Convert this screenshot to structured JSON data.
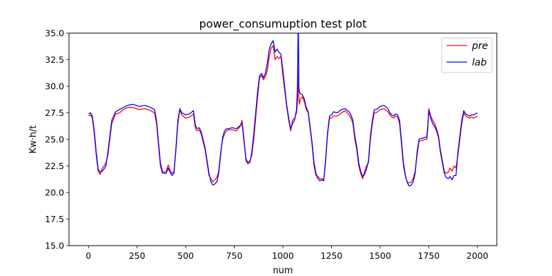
{
  "chart_data": {
    "type": "line",
    "title": "power_consumuption test plot",
    "xlabel": "num",
    "ylabel": "Kw·h/t",
    "xlim": [
      -100,
      2100
    ],
    "ylim": [
      15.0,
      35.0
    ],
    "x_ticks": [
      0,
      250,
      500,
      750,
      1000,
      1250,
      1500,
      1750,
      2000
    ],
    "x_tick_labels": [
      "0",
      "250",
      "500",
      "750",
      "1000",
      "1250",
      "1500",
      "1750",
      "2000"
    ],
    "y_ticks": [
      15.0,
      17.5,
      20.0,
      22.5,
      25.0,
      27.5,
      30.0,
      32.5,
      35.0
    ],
    "y_tick_labels": [
      "15.0",
      "17.5",
      "20.0",
      "22.5",
      "25.0",
      "27.5",
      "30.0",
      "32.5",
      "35.0"
    ],
    "grid": false,
    "legend_position": "top-right",
    "series": [
      {
        "name": "pre",
        "color": "#ff0000",
        "x": [
          0,
          10,
          20,
          30,
          40,
          50,
          60,
          70,
          80,
          90,
          100,
          120,
          140,
          160,
          180,
          200,
          230,
          260,
          290,
          320,
          340,
          350,
          360,
          370,
          380,
          390,
          400,
          410,
          420,
          430,
          440,
          450,
          460,
          470,
          480,
          500,
          520,
          540,
          550,
          560,
          570,
          580,
          600,
          620,
          630,
          640,
          650,
          660,
          670,
          680,
          690,
          700,
          710,
          720,
          740,
          760,
          780,
          790,
          800,
          810,
          820,
          830,
          840,
          850,
          860,
          870,
          880,
          890,
          900,
          910,
          920,
          930,
          940,
          950,
          960,
          970,
          980,
          990,
          1000,
          1010,
          1020,
          1030,
          1040,
          1050,
          1060,
          1070,
          1075,
          1078,
          1080,
          1082,
          1085,
          1090,
          1100,
          1110,
          1120,
          1130,
          1140,
          1150,
          1160,
          1170,
          1180,
          1190,
          1200,
          1210,
          1220,
          1230,
          1240,
          1250,
          1260,
          1280,
          1300,
          1320,
          1340,
          1350,
          1360,
          1370,
          1380,
          1390,
          1400,
          1410,
          1420,
          1430,
          1440,
          1450,
          1460,
          1470,
          1480,
          1500,
          1520,
          1540,
          1550,
          1560,
          1570,
          1580,
          1590,
          1600,
          1610,
          1620,
          1630,
          1640,
          1650,
          1660,
          1670,
          1680,
          1690,
          1700,
          1710,
          1720,
          1730,
          1740,
          1745,
          1750,
          1760,
          1770,
          1780,
          1790,
          1800,
          1810,
          1820,
          1830,
          1840,
          1850,
          1860,
          1870,
          1880,
          1890,
          1900,
          1910,
          1920,
          1930,
          1940,
          1950,
          1960,
          1970,
          1980,
          1990,
          2000
        ],
        "values": [
          27.2,
          27.3,
          27.0,
          25.5,
          23.5,
          22.0,
          21.7,
          22.2,
          22.5,
          22.8,
          23.5,
          26.5,
          27.4,
          27.5,
          27.8,
          28.0,
          28.0,
          27.8,
          27.9,
          27.7,
          27.5,
          26.5,
          24.5,
          22.5,
          21.8,
          21.9,
          22.0,
          22.6,
          22.1,
          21.8,
          22.0,
          24.0,
          26.5,
          27.8,
          27.3,
          27.0,
          27.1,
          27.4,
          26.0,
          25.8,
          25.9,
          25.5,
          24.0,
          21.6,
          21.3,
          21.0,
          21.2,
          21.4,
          22.0,
          23.8,
          25.0,
          25.5,
          25.8,
          25.9,
          25.9,
          25.8,
          26.2,
          26.8,
          25.0,
          23.0,
          22.7,
          23.0,
          23.5,
          25.0,
          27.0,
          29.0,
          30.8,
          31.0,
          30.6,
          30.9,
          31.5,
          32.8,
          33.6,
          33.8,
          32.5,
          32.8,
          32.6,
          32.8,
          31.0,
          29.5,
          28.0,
          26.8,
          25.8,
          26.8,
          27.0,
          27.5,
          28.5,
          30.5,
          31.5,
          29.0,
          28.3,
          28.8,
          29.0,
          28.6,
          27.8,
          27.5,
          26.0,
          24.5,
          22.5,
          21.6,
          21.5,
          21.3,
          21.3,
          21.2,
          23.0,
          25.5,
          27.0,
          27.0,
          27.2,
          27.2,
          27.5,
          27.7,
          27.3,
          27.0,
          26.5,
          25.0,
          24.0,
          22.5,
          21.8,
          21.3,
          22.0,
          22.5,
          22.8,
          25.0,
          26.5,
          27.5,
          27.5,
          27.8,
          27.9,
          27.6,
          27.3,
          27.1,
          27.0,
          27.2,
          27.1,
          26.5,
          24.5,
          22.5,
          21.5,
          21.0,
          20.9,
          21.0,
          21.3,
          22.0,
          23.5,
          24.8,
          24.9,
          24.9,
          25.0,
          25.0,
          26.0,
          27.9,
          27.2,
          26.8,
          26.5,
          26.0,
          25.4,
          24.0,
          23.0,
          22.0,
          21.8,
          21.9,
          22.3,
          22.0,
          22.5,
          22.3,
          23.5,
          25.0,
          26.5,
          27.5,
          27.2,
          27.1,
          27.0,
          27.1,
          27.0,
          27.1,
          27.2
        ]
      },
      {
        "name": "lab",
        "color": "#0000ff",
        "x": [
          0,
          10,
          20,
          30,
          40,
          50,
          60,
          70,
          80,
          90,
          100,
          120,
          140,
          160,
          180,
          200,
          230,
          260,
          290,
          320,
          340,
          350,
          360,
          370,
          380,
          390,
          400,
          410,
          420,
          430,
          440,
          450,
          460,
          470,
          480,
          500,
          520,
          540,
          550,
          560,
          570,
          580,
          600,
          620,
          630,
          640,
          650,
          660,
          670,
          680,
          690,
          700,
          710,
          720,
          740,
          760,
          780,
          790,
          800,
          810,
          820,
          830,
          840,
          850,
          860,
          870,
          880,
          890,
          900,
          910,
          920,
          930,
          940,
          950,
          960,
          970,
          980,
          990,
          1000,
          1010,
          1020,
          1030,
          1040,
          1050,
          1060,
          1070,
          1075,
          1078,
          1080,
          1082,
          1085,
          1090,
          1100,
          1110,
          1120,
          1130,
          1140,
          1150,
          1160,
          1170,
          1180,
          1190,
          1200,
          1210,
          1220,
          1230,
          1240,
          1250,
          1260,
          1280,
          1300,
          1320,
          1340,
          1350,
          1360,
          1370,
          1380,
          1390,
          1400,
          1410,
          1420,
          1430,
          1440,
          1450,
          1460,
          1470,
          1480,
          1500,
          1520,
          1540,
          1550,
          1560,
          1570,
          1580,
          1590,
          1600,
          1610,
          1620,
          1630,
          1640,
          1650,
          1660,
          1670,
          1680,
          1690,
          1700,
          1710,
          1720,
          1730,
          1740,
          1745,
          1750,
          1760,
          1770,
          1780,
          1790,
          1800,
          1810,
          1820,
          1830,
          1840,
          1850,
          1860,
          1870,
          1880,
          1890,
          1900,
          1910,
          1920,
          1930,
          1940,
          1950,
          1960,
          1970,
          1980,
          1990,
          2000
        ],
        "values": [
          27.4,
          27.5,
          27.2,
          25.8,
          23.8,
          22.2,
          21.9,
          22.0,
          22.2,
          22.5,
          23.8,
          26.8,
          27.6,
          27.8,
          28.0,
          28.2,
          28.3,
          28.1,
          28.2,
          28.0,
          27.8,
          26.8,
          24.8,
          22.8,
          22.0,
          21.8,
          21.8,
          22.3,
          21.9,
          21.6,
          21.8,
          24.2,
          26.8,
          27.9,
          27.5,
          27.3,
          27.4,
          27.7,
          26.3,
          26.0,
          26.1,
          25.7,
          24.2,
          21.8,
          21.0,
          20.7,
          20.8,
          21.0,
          21.8,
          23.6,
          25.2,
          25.8,
          26.0,
          26.0,
          26.1,
          26.0,
          26.3,
          26.5,
          24.8,
          23.2,
          22.8,
          22.8,
          23.8,
          25.5,
          27.5,
          29.5,
          31.0,
          31.2,
          30.8,
          31.2,
          32.2,
          33.5,
          34.0,
          34.3,
          33.2,
          33.5,
          33.2,
          33.0,
          31.5,
          29.8,
          28.2,
          27.0,
          26.0,
          26.5,
          26.8,
          27.8,
          30.0,
          35.0,
          35.0,
          30.0,
          29.5,
          29.3,
          29.2,
          28.8,
          28.0,
          27.6,
          26.2,
          24.7,
          22.8,
          21.8,
          21.3,
          21.1,
          21.2,
          21.1,
          23.2,
          25.7,
          27.2,
          27.3,
          27.6,
          27.5,
          27.8,
          27.9,
          27.6,
          27.3,
          26.8,
          25.3,
          24.3,
          22.8,
          22.0,
          21.5,
          21.7,
          22.2,
          23.0,
          25.3,
          26.8,
          27.8,
          27.8,
          28.1,
          28.2,
          27.9,
          27.5,
          27.3,
          27.2,
          27.4,
          27.3,
          26.8,
          24.8,
          22.8,
          21.6,
          20.9,
          20.6,
          20.7,
          21.0,
          21.8,
          23.8,
          25.0,
          25.1,
          25.1,
          25.2,
          25.2,
          26.3,
          27.7,
          27.0,
          26.5,
          26.2,
          25.8,
          25.2,
          23.8,
          22.8,
          21.8,
          21.4,
          21.3,
          21.5,
          21.2,
          21.6,
          21.6,
          23.8,
          25.3,
          26.8,
          27.7,
          27.4,
          27.3,
          27.2,
          27.3,
          27.3,
          27.4,
          27.5
        ]
      }
    ]
  }
}
